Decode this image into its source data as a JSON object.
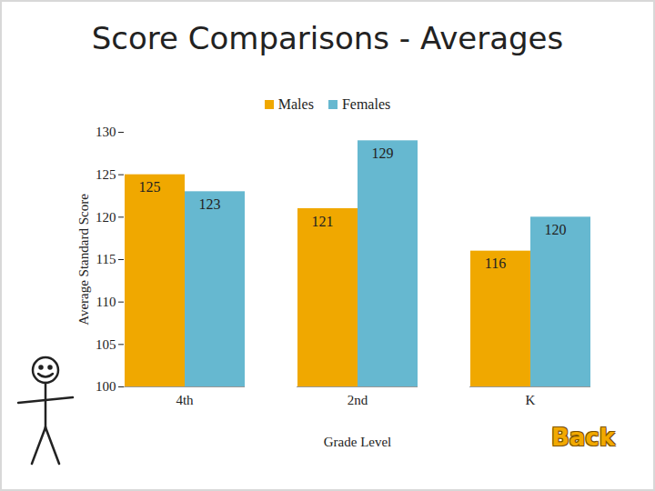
{
  "chart_data": {
    "type": "bar",
    "title": "Score Comparisons - Averages",
    "x_label": "Grade Level",
    "y_label": "Average Standard Score",
    "categories": [
      "4th",
      "2nd",
      "K"
    ],
    "series": [
      {
        "name": "Males",
        "color": "#f0a800",
        "values": [
          125,
          121,
          116
        ]
      },
      {
        "name": "Females",
        "color": "#66b8d0",
        "values": [
          123,
          129,
          120
        ]
      }
    ],
    "ylim": [
      100,
      130
    ],
    "yticks": [
      100,
      105,
      110,
      115,
      120,
      125,
      130
    ],
    "grid": false,
    "legend": "top",
    "data_labels": true,
    "annotations": [
      "Back"
    ]
  }
}
